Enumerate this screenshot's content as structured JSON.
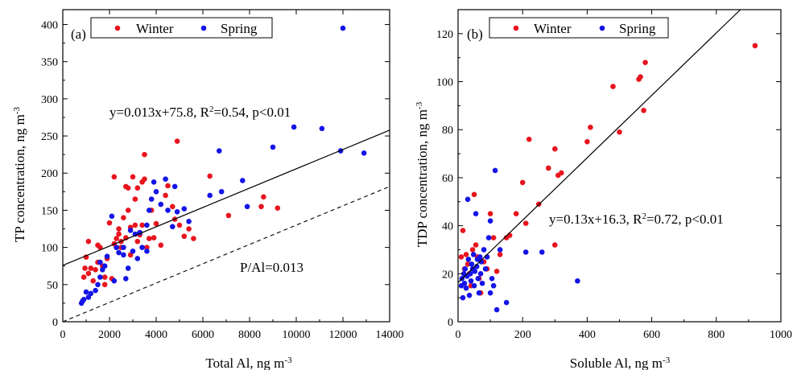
{
  "chart_data": [
    {
      "type": "scatter",
      "panel_label": "(a)",
      "xlabel": "Total Al, ng m",
      "xlabel_sup": "-3",
      "ylabel": "TP concentration, ng m",
      "ylabel_sup": "-3",
      "xlim": [
        0,
        14000
      ],
      "ylim": [
        0,
        420
      ],
      "xticks": [
        0,
        2000,
        4000,
        6000,
        8000,
        10000,
        12000,
        14000
      ],
      "yticks": [
        0,
        50,
        100,
        150,
        200,
        250,
        300,
        350,
        400
      ],
      "legend": {
        "placement": "top-left",
        "entries": [
          "Winter",
          "Spring"
        ]
      },
      "series": [
        {
          "name": "Winter",
          "color": "#e8141e",
          "points": [
            [
              900,
              60
            ],
            [
              950,
              72
            ],
            [
              1000,
              87
            ],
            [
              1100,
              108
            ],
            [
              1100,
              65
            ],
            [
              1200,
              72
            ],
            [
              1300,
              55
            ],
            [
              1400,
              70
            ],
            [
              1500,
              80
            ],
            [
              1500,
              103
            ],
            [
              1600,
              100
            ],
            [
              1700,
              75
            ],
            [
              1800,
              50
            ],
            [
              1800,
              60
            ],
            [
              1900,
              85
            ],
            [
              2000,
              133
            ],
            [
              2100,
              58
            ],
            [
              2200,
              195
            ],
            [
              2200,
              105
            ],
            [
              2300,
              112
            ],
            [
              2300,
              100
            ],
            [
              2400,
              118
            ],
            [
              2400,
              125
            ],
            [
              2500,
              108
            ],
            [
              2500,
              100
            ],
            [
              2600,
              140
            ],
            [
              2700,
              182
            ],
            [
              2700,
              113
            ],
            [
              2800,
              180
            ],
            [
              2800,
              150
            ],
            [
              2900,
              127
            ],
            [
              2900,
              90
            ],
            [
              3000,
              195
            ],
            [
              3100,
              165
            ],
            [
              3100,
              130
            ],
            [
              3200,
              180
            ],
            [
              3200,
              108
            ],
            [
              3300,
              117
            ],
            [
              3300,
              120
            ],
            [
              3400,
              188
            ],
            [
              3400,
              130
            ],
            [
              3500,
              225
            ],
            [
              3500,
              192
            ],
            [
              3600,
              100
            ],
            [
              3700,
              112
            ],
            [
              3800,
              150
            ],
            [
              3900,
              113
            ],
            [
              4000,
              132
            ],
            [
              4200,
              103
            ],
            [
              4400,
              170
            ],
            [
              4500,
              183
            ],
            [
              4700,
              155
            ],
            [
              4800,
              138
            ],
            [
              4900,
              243
            ],
            [
              5000,
              130
            ],
            [
              5200,
              115
            ],
            [
              5400,
              125
            ],
            [
              5600,
              112
            ],
            [
              6300,
              196
            ],
            [
              7100,
              143
            ],
            [
              8600,
              168
            ],
            [
              8500,
              155
            ],
            [
              9200,
              153
            ]
          ]
        },
        {
          "name": "Spring",
          "color": "#1414e8",
          "points": [
            [
              800,
              25
            ],
            [
              850,
              28
            ],
            [
              900,
              30
            ],
            [
              1000,
              40
            ],
            [
              1100,
              33
            ],
            [
              1200,
              38
            ],
            [
              1400,
              42
            ],
            [
              1500,
              50
            ],
            [
              1600,
              60
            ],
            [
              1600,
              80
            ],
            [
              1700,
              70
            ],
            [
              1800,
              75
            ],
            [
              1900,
              88
            ],
            [
              2100,
              142
            ],
            [
              2200,
              55
            ],
            [
              2300,
              100
            ],
            [
              2400,
              93
            ],
            [
              2600,
              90
            ],
            [
              2600,
              100
            ],
            [
              2700,
              58
            ],
            [
              2800,
              72
            ],
            [
              2900,
              123
            ],
            [
              3000,
              95
            ],
            [
              3100,
              118
            ],
            [
              3200,
              85
            ],
            [
              3300,
              120
            ],
            [
              3400,
              100
            ],
            [
              3600,
              130
            ],
            [
              3600,
              95
            ],
            [
              3700,
              150
            ],
            [
              3800,
              165
            ],
            [
              3900,
              188
            ],
            [
              4000,
              175
            ],
            [
              4200,
              158
            ],
            [
              4400,
              192
            ],
            [
              4500,
              150
            ],
            [
              4700,
              128
            ],
            [
              4800,
              182
            ],
            [
              4900,
              148
            ],
            [
              5200,
              152
            ],
            [
              5400,
              135
            ],
            [
              6300,
              170
            ],
            [
              6700,
              230
            ],
            [
              6800,
              175
            ],
            [
              7700,
              190
            ],
            [
              7900,
              155
            ],
            [
              9000,
              235
            ],
            [
              9900,
              262
            ],
            [
              11100,
              260
            ],
            [
              11900,
              230
            ],
            [
              12900,
              227
            ],
            [
              12000,
              395
            ]
          ]
        }
      ],
      "fit_line": {
        "slope": 0.013,
        "intercept": 75.8,
        "style": "solid"
      },
      "ratio_line": {
        "slope": 0.013,
        "intercept": 0,
        "style": "dashed"
      },
      "annotations": {
        "equation": "y=0.013x+75.8, R",
        "equation_sup": "2",
        "equation_tail": "=0.54, p<0.01",
        "ratio": "P/Al=0.013"
      }
    },
    {
      "type": "scatter",
      "panel_label": "(b)",
      "xlabel": "Soluble Al, ng m",
      "xlabel_sup": "-3",
      "ylabel": "TDP concentration, ng m",
      "ylabel_sup": "-3",
      "xlim": [
        0,
        1000
      ],
      "ylim": [
        0,
        130
      ],
      "xticks": [
        0,
        200,
        400,
        600,
        800,
        1000
      ],
      "yticks": [
        0,
        20,
        40,
        60,
        80,
        100,
        120
      ],
      "legend": {
        "placement": "top-left",
        "entries": [
          "Winter",
          "Spring"
        ]
      },
      "series": [
        {
          "name": "Winter",
          "color": "#e8141e",
          "points": [
            [
              10,
              27
            ],
            [
              15,
              38
            ],
            [
              20,
              22
            ],
            [
              25,
              28
            ],
            [
              30,
              24
            ],
            [
              35,
              20
            ],
            [
              40,
              15
            ],
            [
              45,
              30
            ],
            [
              50,
              53
            ],
            [
              55,
              32
            ],
            [
              60,
              27
            ],
            [
              65,
              18
            ],
            [
              70,
              12
            ],
            [
              80,
              25
            ],
            [
              90,
              22
            ],
            [
              100,
              45
            ],
            [
              110,
              35
            ],
            [
              120,
              21
            ],
            [
              130,
              28
            ],
            [
              150,
              35
            ],
            [
              160,
              36
            ],
            [
              180,
              45
            ],
            [
              200,
              58
            ],
            [
              210,
              41
            ],
            [
              220,
              76
            ],
            [
              250,
              49
            ],
            [
              280,
              64
            ],
            [
              300,
              72
            ],
            [
              310,
              61
            ],
            [
              320,
              62
            ],
            [
              400,
              75
            ],
            [
              410,
              81
            ],
            [
              480,
              98
            ],
            [
              500,
              79
            ],
            [
              560,
              101
            ],
            [
              565,
              102
            ],
            [
              575,
              88
            ],
            [
              580,
              108
            ],
            [
              920,
              115
            ],
            [
              300,
              32
            ]
          ]
        },
        {
          "name": "Spring",
          "color": "#1414e8",
          "points": [
            [
              10,
              15
            ],
            [
              12,
              18
            ],
            [
              15,
              10
            ],
            [
              18,
              20
            ],
            [
              20,
              16
            ],
            [
              22,
              22
            ],
            [
              25,
              14
            ],
            [
              28,
              19
            ],
            [
              30,
              51
            ],
            [
              32,
              26
            ],
            [
              35,
              11
            ],
            [
              38,
              20
            ],
            [
              40,
              17
            ],
            [
              42,
              24
            ],
            [
              45,
              22
            ],
            [
              48,
              28
            ],
            [
              50,
              15
            ],
            [
              52,
              21
            ],
            [
              55,
              45
            ],
            [
              58,
              23
            ],
            [
              60,
              26
            ],
            [
              62,
              18
            ],
            [
              65,
              12
            ],
            [
              68,
              27
            ],
            [
              70,
              20
            ],
            [
              72,
              25
            ],
            [
              75,
              16
            ],
            [
              80,
              30
            ],
            [
              85,
              22
            ],
            [
              90,
              27
            ],
            [
              95,
              35
            ],
            [
              100,
              42
            ],
            [
              105,
              18
            ],
            [
              110,
              15
            ],
            [
              115,
              63
            ],
            [
              120,
              5
            ],
            [
              130,
              30
            ],
            [
              150,
              8
            ],
            [
              210,
              29
            ],
            [
              260,
              29
            ],
            [
              370,
              17
            ],
            [
              100,
              12
            ]
          ]
        }
      ],
      "fit_line": {
        "slope": 0.13,
        "intercept": 16.3,
        "style": "solid"
      },
      "annotations": {
        "equation": "y=0.13x+16.3, R",
        "equation_sup": "2",
        "equation_tail": "=0.72, p<0.01"
      }
    }
  ]
}
